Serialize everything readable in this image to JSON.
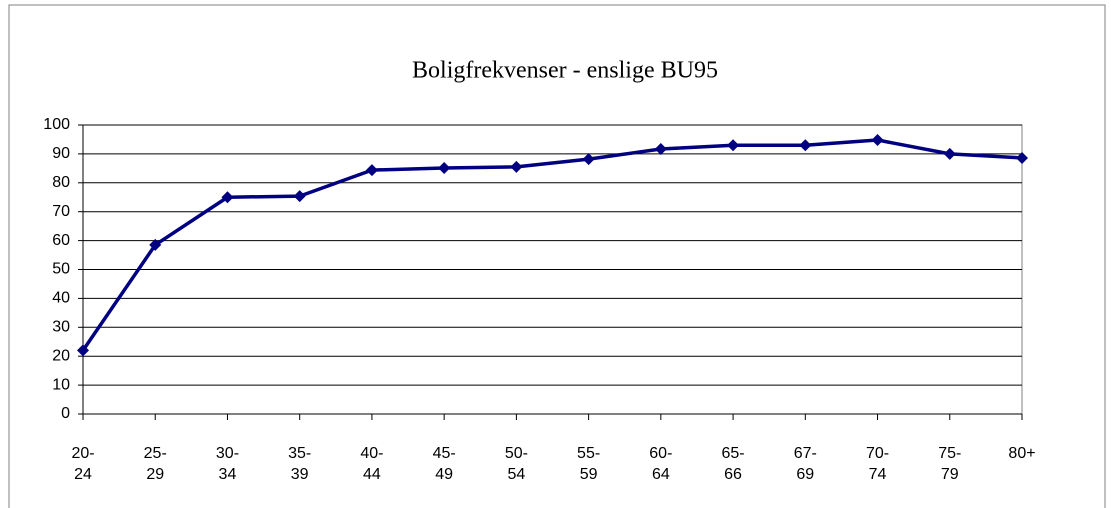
{
  "chart_data": {
    "type": "line",
    "title": "Boligfrekvenser - enslige BU95",
    "categories": [
      "20-24",
      "25-29",
      "30-34",
      "35-39",
      "40-44",
      "45-49",
      "50-54",
      "55-59",
      "60-64",
      "65-66",
      "67-69",
      "70-74",
      "75-79",
      "80+"
    ],
    "series": [
      {
        "name": null,
        "color": "#000080",
        "values": [
          22,
          58.5,
          75,
          75.4,
          84.4,
          85.1,
          85.5,
          88.2,
          91.7,
          93,
          93,
          94.8,
          90,
          88.6
        ]
      }
    ],
    "ylim": [
      0,
      100
    ],
    "yticks": [
      0,
      10,
      20,
      30,
      40,
      50,
      60,
      70,
      80,
      90,
      100
    ],
    "grid": true
  }
}
